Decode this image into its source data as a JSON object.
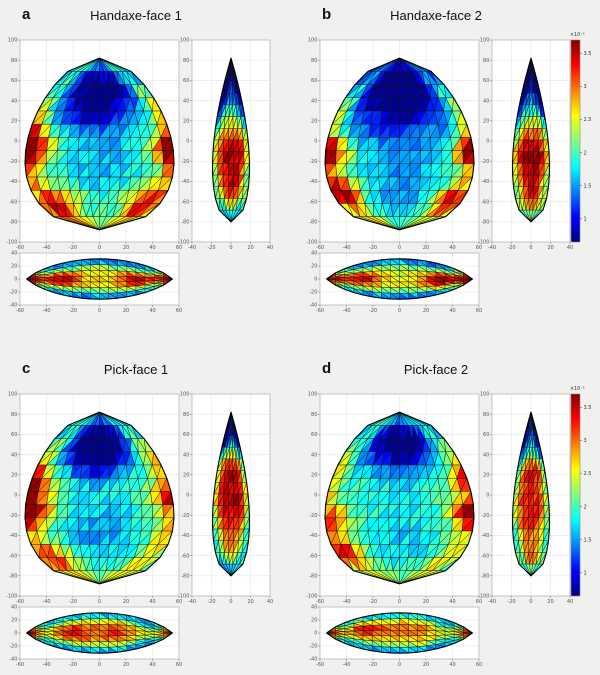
{
  "figure": {
    "background_color": "#f0f0ee",
    "plot_background": "#ffffff",
    "grid_color": "#e4e4e4",
    "mesh_edge_color": "#111111"
  },
  "chart_data": {
    "type": "heatmap",
    "subtype": "triangulated-mesh-multiview",
    "colormap": "jet",
    "grid": "on",
    "axes": {
      "front": {
        "xlim": [
          -60,
          60
        ],
        "ylim": [
          -100,
          100
        ],
        "xticks": [
          -60,
          -40,
          -20,
          0,
          20,
          40,
          60
        ],
        "yticks": [
          -100,
          -80,
          -60,
          -40,
          -20,
          0,
          20,
          40,
          60,
          80,
          100
        ]
      },
      "side": {
        "xlim": [
          -40,
          40
        ],
        "ylim": [
          -100,
          100
        ],
        "xticks": [
          -40,
          -20,
          0,
          20,
          40
        ],
        "yticks": [
          -100,
          -80,
          -60,
          -40,
          -20,
          0,
          20,
          40,
          60,
          80,
          100
        ]
      },
      "bottom": {
        "xlim": [
          -60,
          60
        ],
        "ylim": [
          -40,
          40
        ],
        "xticks": [
          -60,
          -40,
          -20,
          0,
          20,
          40,
          60
        ],
        "yticks": [
          -40,
          -20,
          0,
          20,
          40
        ]
      }
    },
    "colorbar": {
      "min": 0.65,
      "max": 3.7,
      "ticks": [
        1,
        1.5,
        2,
        2.5,
        3,
        3.5
      ],
      "exponent_label": "×10⁻³",
      "position": "right"
    },
    "panels": [
      {
        "label": "a",
        "title": "Handaxe-face 1",
        "has_colorbar": false,
        "views": {
          "front": {
            "orient": "v",
            "shape": {
              "type": "egg",
              "top": 82,
              "bottom": -88,
              "half": 55
            },
            "field": {
              "base": 0.44,
              "edge": {
                "amp": 0.26,
                "sigma": 0.15
              },
              "blobs": [
                {
                  "x": 0,
                  "y": 52,
                  "s": 26,
                  "a": -0.42
                },
                {
                  "x": -5,
                  "y": 28,
                  "s": 15,
                  "a": -0.16
                },
                {
                  "x": -52,
                  "y": -5,
                  "s": 13,
                  "a": 0.5
                },
                {
                  "x": 54,
                  "y": -8,
                  "s": 11,
                  "a": 0.46
                },
                {
                  "x": -30,
                  "y": -62,
                  "s": 13,
                  "a": 0.3
                },
                {
                  "x": 32,
                  "y": -60,
                  "s": 12,
                  "a": 0.28
                },
                {
                  "x": 0,
                  "y": -30,
                  "s": 26,
                  "a": -0.12
                }
              ]
            }
          },
          "side": {
            "orient": "v",
            "shape": {
              "type": "teardrop",
              "top": 82,
              "bottom": -80,
              "half": 19
            },
            "field": {
              "base": 0.5,
              "edge": {
                "amp": -0.28,
                "sigma": 0.3
              },
              "blobs": [
                {
                  "x": 2,
                  "y": -12,
                  "s": 22,
                  "a": 0.44
                },
                {
                  "x": 0,
                  "y": -50,
                  "s": 14,
                  "a": 0.3
                },
                {
                  "x": 0,
                  "y": 58,
                  "s": 24,
                  "a": -0.32
                }
              ]
            }
          },
          "bottom": {
            "orient": "h",
            "shape": {
              "type": "lens",
              "left": -55,
              "right": 55,
              "half": 31
            },
            "field": {
              "base": 0.55,
              "edge": {
                "amp": -0.32,
                "sigma": 0.35
              },
              "blobs": [
                {
                  "x": -52,
                  "y": 0,
                  "s": 8,
                  "a": 0.6
                },
                {
                  "x": 52,
                  "y": 0,
                  "s": 8,
                  "a": 0.6
                },
                {
                  "x": -29,
                  "y": -2,
                  "s": 10,
                  "a": 0.42
                },
                {
                  "x": 29,
                  "y": -2,
                  "s": 10,
                  "a": 0.42
                },
                {
                  "x": 0,
                  "y": 2,
                  "s": 14,
                  "a": 0.08
                }
              ]
            }
          }
        }
      },
      {
        "label": "b",
        "title": "Handaxe-face 2",
        "has_colorbar": true,
        "views": {
          "front": {
            "orient": "v",
            "shape": {
              "type": "egg",
              "top": 82,
              "bottom": -88,
              "half": 55
            },
            "field": {
              "base": 0.44,
              "edge": {
                "amp": 0.24,
                "sigma": 0.15
              },
              "blobs": [
                {
                  "x": 0,
                  "y": 44,
                  "s": 30,
                  "a": -0.46
                },
                {
                  "x": 0,
                  "y": 66,
                  "s": 16,
                  "a": -0.18
                },
                {
                  "x": -50,
                  "y": -12,
                  "s": 10,
                  "a": 0.42
                },
                {
                  "x": 53,
                  "y": -10,
                  "s": 9,
                  "a": 0.5
                },
                {
                  "x": -42,
                  "y": -52,
                  "s": 11,
                  "a": 0.4
                },
                {
                  "x": 38,
                  "y": -60,
                  "s": 10,
                  "a": 0.34
                },
                {
                  "x": 0,
                  "y": -42,
                  "s": 28,
                  "a": -0.16
                }
              ]
            }
          },
          "side": {
            "orient": "v",
            "shape": {
              "type": "teardrop",
              "top": 82,
              "bottom": -80,
              "half": 19
            },
            "field": {
              "base": 0.5,
              "edge": {
                "amp": -0.28,
                "sigma": 0.3
              },
              "blobs": [
                {
                  "x": 1,
                  "y": -18,
                  "s": 26,
                  "a": 0.48
                },
                {
                  "x": 0,
                  "y": -60,
                  "s": 12,
                  "a": 0.3
                },
                {
                  "x": 0,
                  "y": 55,
                  "s": 24,
                  "a": -0.32
                }
              ]
            }
          },
          "bottom": {
            "orient": "h",
            "shape": {
              "type": "lens",
              "left": -55,
              "right": 55,
              "half": 31
            },
            "field": {
              "base": 0.55,
              "edge": {
                "amp": -0.32,
                "sigma": 0.35
              },
              "blobs": [
                {
                  "x": -52,
                  "y": 0,
                  "s": 8,
                  "a": 0.6
                },
                {
                  "x": 52,
                  "y": 0,
                  "s": 8,
                  "a": 0.62
                },
                {
                  "x": -29,
                  "y": 0,
                  "s": 10,
                  "a": 0.4
                },
                {
                  "x": 31,
                  "y": -2,
                  "s": 10,
                  "a": 0.44
                },
                {
                  "x": 0,
                  "y": 2,
                  "s": 14,
                  "a": 0.06
                }
              ]
            }
          }
        }
      },
      {
        "label": "c",
        "title": "Pick-face 1",
        "has_colorbar": false,
        "views": {
          "front": {
            "orient": "v",
            "shape": {
              "type": "egg",
              "top": 82,
              "bottom": -88,
              "half": 55
            },
            "field": {
              "base": 0.46,
              "edge": {
                "amp": 0.22,
                "sigma": 0.15
              },
              "blobs": [
                {
                  "x": 0,
                  "y": 55,
                  "s": 20,
                  "a": -0.46
                },
                {
                  "x": -3,
                  "y": 32,
                  "s": 15,
                  "a": -0.24
                },
                {
                  "x": -52,
                  "y": -12,
                  "s": 12,
                  "a": 0.52
                },
                {
                  "x": -50,
                  "y": 15,
                  "s": 9,
                  "a": 0.38
                },
                {
                  "x": 50,
                  "y": -2,
                  "s": 9,
                  "a": 0.32
                },
                {
                  "x": 0,
                  "y": -35,
                  "s": 24,
                  "a": -0.18
                },
                {
                  "x": -33,
                  "y": -62,
                  "s": 11,
                  "a": 0.24
                }
              ]
            }
          },
          "side": {
            "orient": "v",
            "shape": {
              "type": "teardrop",
              "top": 82,
              "bottom": -80,
              "half": 19
            },
            "field": {
              "base": 0.52,
              "edge": {
                "amp": -0.28,
                "sigma": 0.3
              },
              "blobs": [
                {
                  "x": 0,
                  "y": -8,
                  "s": 24,
                  "a": 0.42
                },
                {
                  "x": -2,
                  "y": 28,
                  "s": 12,
                  "a": 0.26
                },
                {
                  "x": 0,
                  "y": 62,
                  "s": 16,
                  "a": -0.26
                },
                {
                  "x": 0,
                  "y": -52,
                  "s": 12,
                  "a": 0.18
                }
              ]
            }
          },
          "bottom": {
            "orient": "h",
            "shape": {
              "type": "lens",
              "left": -55,
              "right": 55,
              "half": 31
            },
            "field": {
              "base": 0.57,
              "edge": {
                "amp": -0.3,
                "sigma": 0.35
              },
              "blobs": [
                {
                  "x": -52,
                  "y": 0,
                  "s": 7,
                  "a": 0.55
                },
                {
                  "x": 52,
                  "y": 0,
                  "s": 7,
                  "a": 0.5
                },
                {
                  "x": -22,
                  "y": 2,
                  "s": 12,
                  "a": 0.3
                },
                {
                  "x": 12,
                  "y": 2,
                  "s": 14,
                  "a": 0.25
                }
              ]
            }
          }
        }
      },
      {
        "label": "d",
        "title": "Pick-face 2",
        "has_colorbar": true,
        "views": {
          "front": {
            "orient": "v",
            "shape": {
              "type": "egg",
              "top": 82,
              "bottom": -88,
              "half": 55
            },
            "field": {
              "base": 0.46,
              "edge": {
                "amp": 0.2,
                "sigma": 0.15
              },
              "blobs": [
                {
                  "x": 0,
                  "y": 50,
                  "s": 22,
                  "a": -0.5
                },
                {
                  "x": 52,
                  "y": -18,
                  "s": 10,
                  "a": 0.46
                },
                {
                  "x": 48,
                  "y": 15,
                  "s": 8,
                  "a": 0.32
                },
                {
                  "x": -48,
                  "y": -25,
                  "s": 9,
                  "a": 0.28
                },
                {
                  "x": -42,
                  "y": -58,
                  "s": 10,
                  "a": 0.3
                },
                {
                  "x": 0,
                  "y": -40,
                  "s": 26,
                  "a": -0.12
                }
              ]
            }
          },
          "side": {
            "orient": "v",
            "shape": {
              "type": "teardrop",
              "top": 82,
              "bottom": -80,
              "half": 19
            },
            "field": {
              "base": 0.54,
              "edge": {
                "amp": -0.3,
                "sigma": 0.3
              },
              "blobs": [
                {
                  "x": 0,
                  "y": -15,
                  "s": 26,
                  "a": 0.32
                },
                {
                  "x": 2,
                  "y": 25,
                  "s": 10,
                  "a": 0.28
                },
                {
                  "x": 0,
                  "y": -62,
                  "s": 10,
                  "a": 0.28
                },
                {
                  "x": 0,
                  "y": 55,
                  "s": 18,
                  "a": -0.2
                }
              ]
            }
          },
          "bottom": {
            "orient": "h",
            "shape": {
              "type": "lens",
              "left": -55,
              "right": 55,
              "half": 31
            },
            "field": {
              "base": 0.57,
              "edge": {
                "amp": -0.3,
                "sigma": 0.35
              },
              "blobs": [
                {
                  "x": -52,
                  "y": 0,
                  "s": 7,
                  "a": 0.5
                },
                {
                  "x": 52,
                  "y": 0,
                  "s": 7,
                  "a": 0.55
                },
                {
                  "x": -27,
                  "y": 6,
                  "s": 11,
                  "a": 0.32
                },
                {
                  "x": 8,
                  "y": 4,
                  "s": 16,
                  "a": 0.2
                }
              ]
            }
          }
        }
      }
    ]
  }
}
